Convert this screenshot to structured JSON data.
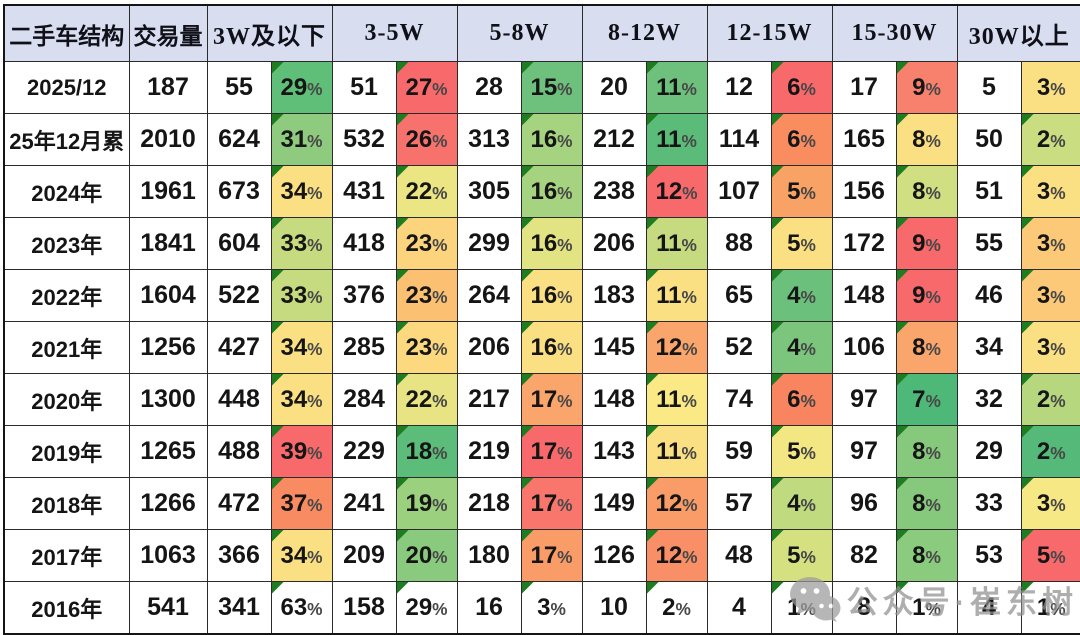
{
  "colors": {
    "header_bg": "#d8ddf0",
    "grid_line": "#2b2b2b",
    "marker_green": "#1e7d21",
    "watermark_grey": "#9b9b9b"
  },
  "watermark": {
    "text": "公众号·崔东树",
    "icon": "wechat-logo"
  },
  "chart_data": {
    "type": "table",
    "title": "二手车结构",
    "corner_label": "二手车结构",
    "volume_label": "交易量",
    "price_groups": [
      "3W及以下",
      "3-5W",
      "5-8W",
      "8-12W",
      "12-15W",
      "15-30W",
      "30W以上"
    ],
    "rows": [
      {
        "label": "2025/12",
        "volume": "187",
        "segments": [
          {
            "count": "55",
            "pct": "29%",
            "bg": "#5fbe78",
            "marker": true
          },
          {
            "count": "51",
            "pct": "27%",
            "bg": "#f8696b",
            "marker": true
          },
          {
            "count": "28",
            "pct": "15%",
            "bg": "#6ec17d",
            "marker": true
          },
          {
            "count": "20",
            "pct": "11%",
            "bg": "#6ec17d",
            "marker": true
          },
          {
            "count": "12",
            "pct": "6%",
            "bg": "#f8696b",
            "marker": true
          },
          {
            "count": "17",
            "pct": "9%",
            "bg": "#f8816e",
            "marker": true
          },
          {
            "count": "5",
            "pct": "3%",
            "bg": "#fbe083",
            "marker": false
          }
        ]
      },
      {
        "label": "25年12月累",
        "volume": "2010",
        "segments": [
          {
            "count": "624",
            "pct": "31%",
            "bg": "#8fcb7e",
            "marker": true
          },
          {
            "count": "532",
            "pct": "26%",
            "bg": "#f7726c",
            "marker": true
          },
          {
            "count": "313",
            "pct": "16%",
            "bg": "#a6d37f",
            "marker": true
          },
          {
            "count": "212",
            "pct": "11%",
            "bg": "#5bbc79",
            "marker": true
          },
          {
            "count": "114",
            "pct": "6%",
            "bg": "#f98d60",
            "marker": true
          },
          {
            "count": "165",
            "pct": "8%",
            "bg": "#fbe083",
            "marker": true
          },
          {
            "count": "50",
            "pct": "2%",
            "bg": "#cbdd81",
            "marker": true
          }
        ]
      },
      {
        "label": "2024年",
        "volume": "1961",
        "segments": [
          {
            "count": "673",
            "pct": "34%",
            "bg": "#fbe083",
            "marker": true
          },
          {
            "count": "431",
            "pct": "22%",
            "bg": "#ebe583",
            "marker": true
          },
          {
            "count": "305",
            "pct": "16%",
            "bg": "#a6d37f",
            "marker": true
          },
          {
            "count": "238",
            "pct": "12%",
            "bg": "#f8696b",
            "marker": true
          },
          {
            "count": "107",
            "pct": "5%",
            "bg": "#f9a266",
            "marker": true
          },
          {
            "count": "156",
            "pct": "8%",
            "bg": "#cfdf82",
            "marker": true
          },
          {
            "count": "51",
            "pct": "3%",
            "bg": "#fbe083",
            "marker": true
          }
        ]
      },
      {
        "label": "2023年",
        "volume": "1841",
        "segments": [
          {
            "count": "604",
            "pct": "33%",
            "bg": "#c6db80",
            "marker": true
          },
          {
            "count": "418",
            "pct": "23%",
            "bg": "#fcd47d",
            "marker": true
          },
          {
            "count": "299",
            "pct": "16%",
            "bg": "#e2e383",
            "marker": true
          },
          {
            "count": "206",
            "pct": "11%",
            "bg": "#c6db80",
            "marker": true
          },
          {
            "count": "88",
            "pct": "5%",
            "bg": "#fbe083",
            "marker": true
          },
          {
            "count": "172",
            "pct": "9%",
            "bg": "#f8696b",
            "marker": true
          },
          {
            "count": "55",
            "pct": "3%",
            "bg": "#fcc979",
            "marker": true
          }
        ]
      },
      {
        "label": "2022年",
        "volume": "1604",
        "segments": [
          {
            "count": "522",
            "pct": "33%",
            "bg": "#c6db80",
            "marker": true
          },
          {
            "count": "376",
            "pct": "23%",
            "bg": "#fbc072",
            "marker": true
          },
          {
            "count": "264",
            "pct": "16%",
            "bg": "#fbe083",
            "marker": true
          },
          {
            "count": "183",
            "pct": "11%",
            "bg": "#fbe083",
            "marker": true
          },
          {
            "count": "65",
            "pct": "4%",
            "bg": "#6bc07c",
            "marker": true
          },
          {
            "count": "148",
            "pct": "9%",
            "bg": "#f8696b",
            "marker": true
          },
          {
            "count": "46",
            "pct": "3%",
            "bg": "#fcc979",
            "marker": true
          }
        ]
      },
      {
        "label": "2021年",
        "volume": "1256",
        "segments": [
          {
            "count": "427",
            "pct": "34%",
            "bg": "#fbe083",
            "marker": true
          },
          {
            "count": "285",
            "pct": "23%",
            "bg": "#fcd87e",
            "marker": true
          },
          {
            "count": "206",
            "pct": "16%",
            "bg": "#fbe083",
            "marker": true
          },
          {
            "count": "145",
            "pct": "12%",
            "bg": "#faa56b",
            "marker": true
          },
          {
            "count": "52",
            "pct": "4%",
            "bg": "#7cc57c",
            "marker": true
          },
          {
            "count": "106",
            "pct": "8%",
            "bg": "#faa56b",
            "marker": true
          },
          {
            "count": "34",
            "pct": "3%",
            "bg": "#fbe083",
            "marker": true
          }
        ]
      },
      {
        "label": "2020年",
        "volume": "1300",
        "segments": [
          {
            "count": "448",
            "pct": "34%",
            "bg": "#fbe083",
            "marker": true
          },
          {
            "count": "284",
            "pct": "22%",
            "bg": "#e8e483",
            "marker": true
          },
          {
            "count": "217",
            "pct": "17%",
            "bg": "#faa56b",
            "marker": true
          },
          {
            "count": "148",
            "pct": "11%",
            "bg": "#fae985",
            "marker": true
          },
          {
            "count": "74",
            "pct": "6%",
            "bg": "#f8855f",
            "marker": true
          },
          {
            "count": "97",
            "pct": "7%",
            "bg": "#4eb878",
            "marker": true
          },
          {
            "count": "32",
            "pct": "2%",
            "bg": "#b7d77f",
            "marker": true
          }
        ]
      },
      {
        "label": "2019年",
        "volume": "1265",
        "segments": [
          {
            "count": "488",
            "pct": "39%",
            "bg": "#f8696b",
            "marker": true
          },
          {
            "count": "229",
            "pct": "18%",
            "bg": "#5cbc79",
            "marker": true
          },
          {
            "count": "219",
            "pct": "17%",
            "bg": "#f8696b",
            "marker": true
          },
          {
            "count": "143",
            "pct": "11%",
            "bg": "#fbe083",
            "marker": true
          },
          {
            "count": "59",
            "pct": "5%",
            "bg": "#f3e784",
            "marker": true
          },
          {
            "count": "97",
            "pct": "8%",
            "bg": "#86c97d",
            "marker": true
          },
          {
            "count": "29",
            "pct": "2%",
            "bg": "#55ba79",
            "marker": true
          }
        ]
      },
      {
        "label": "2018年",
        "volume": "1266",
        "segments": [
          {
            "count": "472",
            "pct": "37%",
            "bg": "#f98b63",
            "marker": true
          },
          {
            "count": "241",
            "pct": "19%",
            "bg": "#9bd07f",
            "marker": true
          },
          {
            "count": "218",
            "pct": "17%",
            "bg": "#f8766c",
            "marker": true
          },
          {
            "count": "149",
            "pct": "12%",
            "bg": "#f99c67",
            "marker": true
          },
          {
            "count": "57",
            "pct": "4%",
            "bg": "#c0da80",
            "marker": true
          },
          {
            "count": "96",
            "pct": "8%",
            "bg": "#86c97d",
            "marker": true
          },
          {
            "count": "33",
            "pct": "3%",
            "bg": "#f6e884",
            "marker": true
          }
        ]
      },
      {
        "label": "2017年",
        "volume": "1063",
        "segments": [
          {
            "count": "366",
            "pct": "34%",
            "bg": "#fbe083",
            "marker": true
          },
          {
            "count": "209",
            "pct": "20%",
            "bg": "#89ca7e",
            "marker": true
          },
          {
            "count": "180",
            "pct": "17%",
            "bg": "#f99c67",
            "marker": true
          },
          {
            "count": "126",
            "pct": "12%",
            "bg": "#f98f66",
            "marker": true
          },
          {
            "count": "48",
            "pct": "5%",
            "bg": "#d5e081",
            "marker": true
          },
          {
            "count": "82",
            "pct": "8%",
            "bg": "#8bcb7e",
            "marker": true
          },
          {
            "count": "53",
            "pct": "5%",
            "bg": "#f8696b",
            "marker": true
          }
        ]
      },
      {
        "label": "2016年",
        "volume": "541",
        "segments": [
          {
            "count": "341",
            "pct": "63%",
            "bg": "#ffffff",
            "marker": true
          },
          {
            "count": "158",
            "pct": "29%",
            "bg": "#ffffff",
            "marker": true
          },
          {
            "count": "16",
            "pct": "3%",
            "bg": "#ffffff",
            "marker": true
          },
          {
            "count": "10",
            "pct": "2%",
            "bg": "#ffffff",
            "marker": true
          },
          {
            "count": "4",
            "pct": "1%",
            "bg": "#ffffff",
            "marker": true
          },
          {
            "count": "8",
            "pct": "1%",
            "bg": "#ffffff",
            "marker": true
          },
          {
            "count": "4",
            "pct": "1%",
            "bg": "#ffffff",
            "marker": true
          }
        ]
      }
    ]
  }
}
